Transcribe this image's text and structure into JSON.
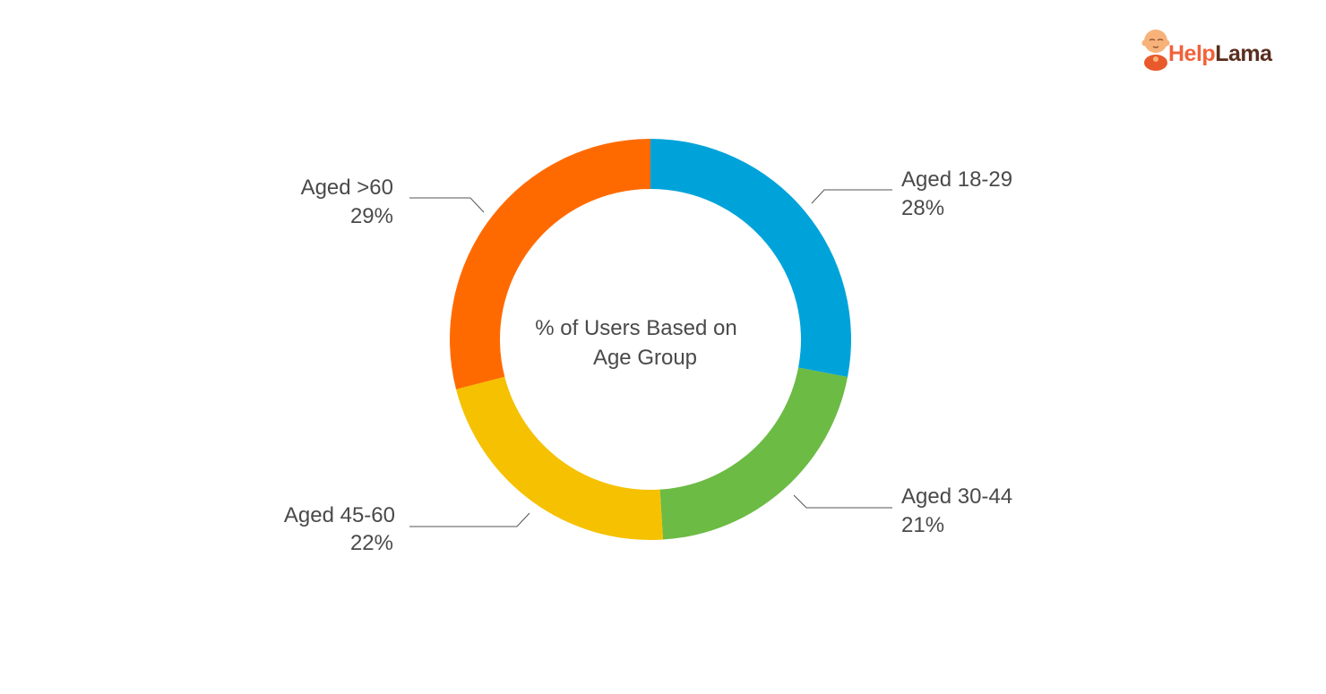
{
  "brand": {
    "part1": "Help",
    "part2": "Lama",
    "colors": {
      "help": "#f0623a",
      "lama": "#5a2e1e",
      "mascot_skin": "#f7b27a",
      "mascot_robe": "#e85a2c"
    }
  },
  "chart_data": {
    "type": "pie",
    "subtype": "donut",
    "title_lines": [
      "% of Users Based on",
      "Age Group"
    ],
    "series": [
      {
        "name": "Aged 18-29",
        "value": 28,
        "label": "28%",
        "color": "#00a3d9"
      },
      {
        "name": "Aged 30-44",
        "value": 21,
        "label": "21%",
        "color": "#6cbb44"
      },
      {
        "name": "Aged 45-60",
        "value": 22,
        "label": "22%",
        "color": "#f5c100"
      },
      {
        "name": "Aged >60",
        "value": 29,
        "label": "29%",
        "color": "#ff6a00"
      }
    ],
    "start_angle": "12 o'clock",
    "direction": "clockwise"
  }
}
